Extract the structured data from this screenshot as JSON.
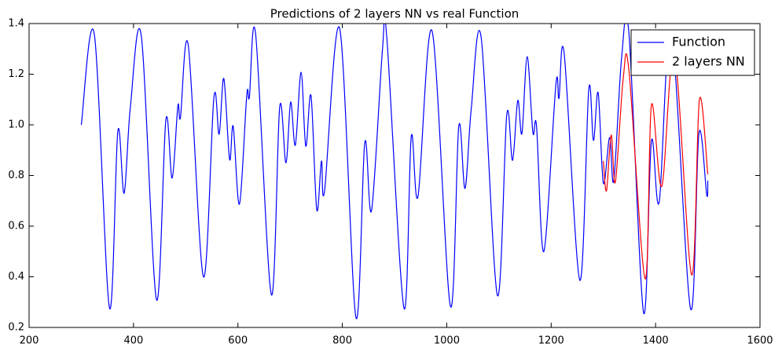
{
  "chart_data": {
    "type": "line",
    "title": "Predictions of 2 layers NN vs real Function",
    "series": [
      {
        "name": "Function",
        "color": "#0000ff",
        "x": [
          300,
          325,
          354,
          370,
          382,
          394,
          415,
          444,
          462,
          474,
          485,
          490,
          505,
          534,
          554,
          564,
          573,
          584,
          591,
          603,
          617,
          622,
          634,
          664,
          680,
          692,
          701,
          710,
          721,
          730,
          740,
          751,
          760,
          766,
          795,
          826,
          843,
          856,
          877,
          885,
          918,
          932,
          945,
          972,
          1007,
          1023,
          1035,
          1047,
          1066,
          1097,
          1115,
          1126,
          1136,
          1144,
          1154,
          1165,
          1172,
          1186,
          1209,
          1215,
          1225,
          1255,
          1272,
          1281,
          1290,
          1300,
          1312,
          1320,
          1335,
          1349,
          1377,
          1392,
          1407,
          1430,
          1467,
          1483,
          1498,
          1500
        ],
        "values": [
          1.0,
          1.357,
          0.277,
          0.975,
          0.73,
          1.07,
          1.35,
          0.31,
          1.02,
          0.79,
          1.075,
          1.03,
          1.313,
          0.4,
          1.108,
          0.963,
          1.183,
          0.864,
          0.994,
          0.687,
          1.118,
          1.11,
          1.357,
          0.33,
          1.07,
          0.85,
          1.09,
          0.92,
          1.208,
          0.916,
          1.115,
          0.665,
          0.857,
          0.74,
          1.38,
          0.24,
          0.93,
          0.662,
          1.3,
          1.35,
          0.277,
          0.953,
          0.718,
          1.37,
          0.284,
          0.994,
          0.749,
          1.065,
          1.344,
          0.327,
          1.04,
          0.86,
          1.096,
          0.966,
          1.27,
          0.97,
          0.994,
          0.5,
          1.158,
          1.105,
          1.28,
          0.386,
          1.14,
          0.938,
          1.127,
          0.77,
          0.95,
          0.78,
          1.267,
          1.36,
          0.259,
          0.935,
          0.696,
          1.37,
          0.274,
          0.966,
          0.724,
          0.78
        ]
      },
      {
        "name": "2 layers NN",
        "color": "#ff0000",
        "x": [
          1300,
          1306,
          1315,
          1323,
          1338,
          1349,
          1380,
          1392,
          1412,
          1436,
          1469,
          1484,
          1500
        ],
        "values": [
          0.857,
          0.74,
          0.96,
          0.774,
          1.183,
          1.214,
          0.392,
          1.078,
          0.758,
          1.28,
          0.408,
          1.1,
          0.805
        ]
      }
    ],
    "xlim": [
      200,
      1600
    ],
    "xticks": [
      200,
      400,
      600,
      800,
      1000,
      1200,
      1400,
      1600
    ],
    "ylim": [
      0.2,
      1.4
    ],
    "yticks": [
      0.2,
      0.4,
      0.6,
      0.8,
      {
        "value": 1,
        "label": "1.0"
      },
      1.2,
      1.4
    ],
    "legend": "upper right"
  }
}
